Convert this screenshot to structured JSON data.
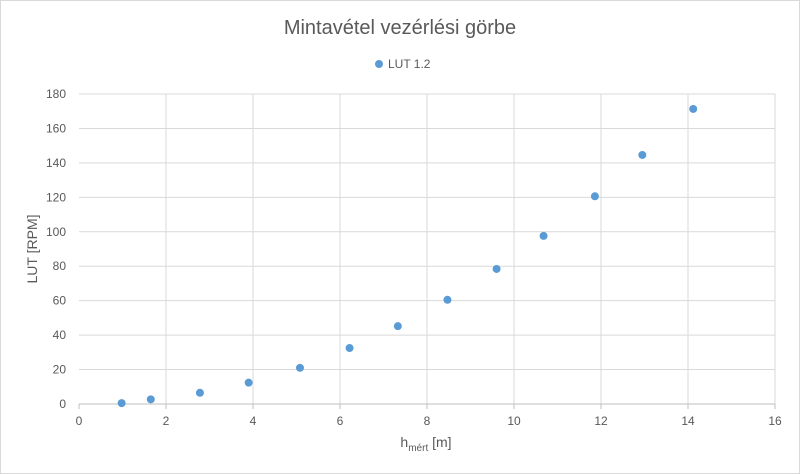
{
  "chart_data": {
    "type": "scatter",
    "title": "Mintavétel vezérlési görbe",
    "xlabel_main": "h",
    "xlabel_sub": "mért",
    "xlabel_unit": " [m]",
    "ylabel": "LUT [RPM]",
    "xlim": [
      0,
      16
    ],
    "ylim": [
      0,
      180
    ],
    "xticks": [
      0,
      2,
      4,
      6,
      8,
      10,
      12,
      14,
      16
    ],
    "yticks": [
      0,
      20,
      40,
      60,
      80,
      100,
      120,
      140,
      160,
      180
    ],
    "grid": true,
    "legend_position": "top",
    "series": [
      {
        "name": "LUT 1.2",
        "color": "#5b9bd5",
        "x": [
          0.98,
          1.65,
          2.78,
          3.9,
          5.08,
          6.22,
          7.33,
          8.47,
          9.6,
          10.68,
          11.86,
          12.95,
          14.12
        ],
        "y": [
          0.5,
          2.7,
          6.5,
          12.4,
          21,
          32.5,
          45.2,
          60.5,
          78.4,
          97.6,
          120.6,
          144.6,
          171.3
        ]
      }
    ]
  }
}
